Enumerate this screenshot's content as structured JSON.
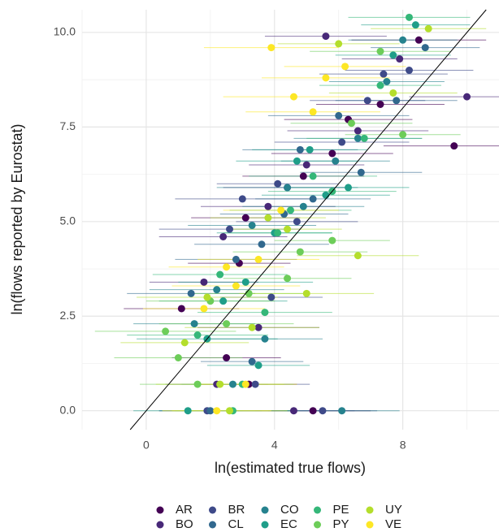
{
  "chart_data": {
    "type": "scatter",
    "xlabel": "ln(estimated true flows)",
    "ylabel": "ln(flows reported by Eurostat)",
    "xlim": [
      -2,
      11
    ],
    "ylim": [
      -0.5,
      10.6
    ],
    "xticks": [
      0,
      4,
      8
    ],
    "yticks": [
      {
        "value": 0,
        "label": "0.0"
      },
      {
        "value": 2.5,
        "label": "2.5"
      },
      {
        "value": 5,
        "label": "5.0"
      },
      {
        "value": 7.5,
        "label": "7.5"
      },
      {
        "value": 10,
        "label": "10.0"
      }
    ],
    "xgrid_minor": [
      -2,
      2,
      6,
      10
    ],
    "ygrid_minor": [
      1.25,
      3.75,
      6.25,
      8.75
    ],
    "grid": true,
    "reference_line": {
      "slope": 1,
      "intercept": 0
    },
    "legend": "bottom",
    "series": [
      {
        "name": "AR",
        "color": "#440154",
        "x": [
          5.2,
          7.3,
          9.6,
          4.9,
          3.1,
          2.9,
          1.1,
          3.2,
          5.8,
          6.3,
          8.5,
          2.5
        ],
        "values": [
          0,
          8.1,
          7.0,
          6.2,
          5.1,
          3.9,
          2.7,
          0.7,
          6.8,
          7.7,
          9.8,
          1.4
        ],
        "xerr": [
          1.8,
          2.0,
          2.2,
          1.9,
          1.7,
          1.6,
          1.8,
          1.5,
          1.9,
          2.0,
          2.1,
          1.7
        ]
      },
      {
        "name": "BO",
        "color": "#482878",
        "x": [
          4.6,
          10.0,
          2.4,
          3.8,
          5.0,
          1.8,
          3.5,
          6.6,
          4.4,
          7.9,
          2.2,
          5.6
        ],
        "values": [
          0,
          8.3,
          4.6,
          5.4,
          6.5,
          3.4,
          2.2,
          7.4,
          5.9,
          9.3,
          0.7,
          9.9
        ],
        "xerr": [
          1.9,
          1.8,
          2.0,
          2.1,
          1.8,
          1.7,
          1.9,
          2.2,
          2.0,
          1.8,
          1.6,
          1.9
        ]
      },
      {
        "name": "BR",
        "color": "#3E4A89",
        "x": [
          5.5,
          8.2,
          4.1,
          3.0,
          6.9,
          2.6,
          3.9,
          4.7,
          7.4,
          3.4,
          1.9,
          6.1
        ],
        "values": [
          0,
          9.0,
          6.0,
          5.6,
          8.2,
          4.8,
          3.0,
          5.0,
          8.9,
          0.7,
          0,
          7.1
        ],
        "xerr": [
          1.7,
          2.0,
          1.9,
          2.1,
          1.8,
          2.2,
          1.6,
          1.9,
          2.0,
          1.7,
          1.5,
          2.1
        ]
      },
      {
        "name": "CL",
        "color": "#31688E",
        "x": [
          2.0,
          4.3,
          6.7,
          5.2,
          3.6,
          8.7,
          2.8,
          1.4,
          4.8,
          6.0,
          7.8,
          3.3
        ],
        "values": [
          0,
          5.2,
          6.3,
          5.6,
          4.4,
          9.6,
          4.0,
          3.1,
          6.9,
          7.8,
          8.2,
          1.3
        ],
        "xerr": [
          1.6,
          2.0,
          1.9,
          1.8,
          2.1,
          1.7,
          1.9,
          2.0,
          1.8,
          2.2,
          1.9,
          1.6
        ]
      },
      {
        "name": "CO",
        "color": "#26828E",
        "x": [
          6.1,
          4.9,
          3.3,
          5.9,
          2.2,
          7.5,
          1.5,
          4.4,
          8.0,
          3.7,
          6.6,
          2.7
        ],
        "values": [
          0,
          5.4,
          4.9,
          6.6,
          3.2,
          8.7,
          2.3,
          5.9,
          9.8,
          1.9,
          7.2,
          0.7
        ],
        "xerr": [
          1.8,
          1.9,
          2.0,
          1.7,
          2.1,
          1.8,
          1.9,
          2.2,
          1.7,
          1.8,
          2.0,
          1.6
        ]
      },
      {
        "name": "EC",
        "color": "#1F9E89",
        "x": [
          1.3,
          5.6,
          4.0,
          6.3,
          3.1,
          7.7,
          2.4,
          8.4,
          4.7,
          1.9,
          5.1,
          3.5
        ],
        "values": [
          0,
          5.7,
          4.7,
          5.9,
          3.4,
          9.4,
          2.9,
          10.2,
          6.6,
          1.9,
          6.9,
          1.2
        ],
        "xerr": [
          1.7,
          2.0,
          1.8,
          1.9,
          2.1,
          1.8,
          2.0,
          1.7,
          1.9,
          2.2,
          1.8,
          1.6
        ]
      },
      {
        "name": "PE",
        "color": "#35B779",
        "x": [
          2.7,
          3.7,
          7.3,
          5.8,
          4.1,
          1.6,
          6.8,
          8.2,
          5.2,
          2.3,
          3.0,
          4.5
        ],
        "values": [
          0,
          2.6,
          8.6,
          5.8,
          4.7,
          2.0,
          7.2,
          10.4,
          6.2,
          3.6,
          0.7,
          5.3
        ],
        "xerr": [
          1.8,
          2.1,
          1.9,
          2.0,
          1.7,
          2.2,
          1.8,
          1.9,
          2.0,
          2.1,
          1.6,
          1.9
        ]
      },
      {
        "name": "PY",
        "color": "#6DCD59",
        "x": [
          0.6,
          1.0,
          1.6,
          2.5,
          3.2,
          4.4,
          5.8,
          7.3,
          6.4,
          4.8,
          2.0,
          8.0
        ],
        "values": [
          2.1,
          1.4,
          0.7,
          2.3,
          3.1,
          3.5,
          4.5,
          9.5,
          7.6,
          4.2,
          2.9,
          7.3
        ],
        "xerr": [
          2.2,
          2.0,
          1.8,
          2.1,
          1.9,
          2.0,
          1.8,
          2.2,
          1.9,
          2.1,
          2.0,
          1.8
        ]
      },
      {
        "name": "UY",
        "color": "#B4DE2C",
        "x": [
          1.2,
          2.6,
          5.0,
          6.6,
          7.7,
          3.8,
          1.9,
          4.4,
          6.0,
          2.3,
          8.8,
          3.3
        ],
        "values": [
          1.8,
          0,
          3.1,
          4.1,
          8.4,
          5.1,
          3.0,
          4.8,
          9.7,
          0.7,
          10.1,
          2.2
        ],
        "xerr": [
          2.0,
          1.8,
          2.1,
          1.9,
          2.0,
          1.8,
          2.2,
          1.7,
          1.9,
          2.0,
          1.8,
          2.1
        ]
      },
      {
        "name": "VE",
        "color": "#FDE725",
        "x": [
          2.2,
          2.8,
          3.5,
          4.6,
          3.9,
          2.5,
          5.6,
          6.2,
          4.2,
          3.1,
          5.2,
          1.8
        ],
        "values": [
          0,
          3.3,
          4.0,
          8.3,
          9.6,
          3.8,
          8.8,
          9.1,
          5.3,
          0.7,
          7.9,
          2.7
        ],
        "xerr": [
          1.7,
          2.0,
          1.9,
          2.2,
          2.1,
          1.8,
          2.0,
          1.9,
          1.8,
          1.6,
          2.1,
          1.9
        ]
      }
    ]
  }
}
